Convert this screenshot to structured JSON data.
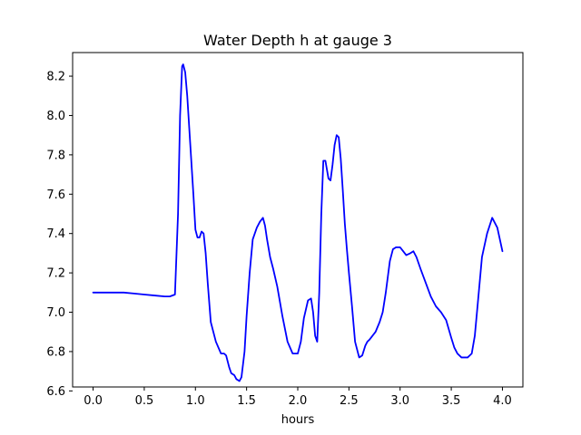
{
  "chart_data": {
    "type": "line",
    "title": "Water Depth h at gauge 3",
    "xlabel": "hours",
    "ylabel": "",
    "xlim": [
      -0.2,
      4.2
    ],
    "ylim": [
      6.62,
      8.32
    ],
    "xticks": [
      0.0,
      0.5,
      1.0,
      1.5,
      2.0,
      2.5,
      3.0,
      3.5,
      4.0
    ],
    "xtick_labels": [
      "0.0",
      "0.5",
      "1.0",
      "1.5",
      "2.0",
      "2.5",
      "3.0",
      "3.5",
      "4.0"
    ],
    "yticks": [
      6.6,
      6.8,
      7.0,
      7.2,
      7.4,
      7.6,
      7.8,
      8.0,
      8.2
    ],
    "ytick_labels": [
      "6.6",
      "6.8",
      "7.0",
      "7.2",
      "7.4",
      "7.6",
      "7.8",
      "8.0",
      "8.2"
    ],
    "grid": false,
    "legend": "none",
    "series": [
      {
        "color": "#0000ff",
        "x": [
          0.0,
          0.1,
          0.2,
          0.3,
          0.4,
          0.5,
          0.6,
          0.7,
          0.75,
          0.8,
          0.83,
          0.85,
          0.87,
          0.88,
          0.9,
          0.92,
          0.95,
          0.98,
          1.0,
          1.02,
          1.04,
          1.06,
          1.08,
          1.1,
          1.12,
          1.15,
          1.2,
          1.25,
          1.28,
          1.3,
          1.33,
          1.35,
          1.38,
          1.4,
          1.43,
          1.45,
          1.48,
          1.5,
          1.53,
          1.56,
          1.6,
          1.63,
          1.66,
          1.68,
          1.7,
          1.73,
          1.76,
          1.8,
          1.85,
          1.9,
          1.95,
          2.0,
          2.03,
          2.06,
          2.1,
          2.13,
          2.15,
          2.17,
          2.19,
          2.21,
          2.23,
          2.25,
          2.27,
          2.3,
          2.32,
          2.34,
          2.36,
          2.38,
          2.4,
          2.42,
          2.44,
          2.46,
          2.48,
          2.5,
          2.53,
          2.56,
          2.6,
          2.63,
          2.66,
          2.68,
          2.7,
          2.73,
          2.76,
          2.8,
          2.83,
          2.86,
          2.9,
          2.93,
          2.96,
          3.0,
          3.03,
          3.06,
          3.1,
          3.13,
          3.16,
          3.2,
          3.25,
          3.3,
          3.35,
          3.4,
          3.45,
          3.5,
          3.53,
          3.56,
          3.6,
          3.63,
          3.66,
          3.7,
          3.73,
          3.76,
          3.8,
          3.85,
          3.9,
          3.95,
          4.0
        ],
        "y": [
          7.1,
          7.1,
          7.1,
          7.1,
          7.095,
          7.09,
          7.085,
          7.08,
          7.08,
          7.09,
          7.5,
          8.0,
          8.25,
          8.26,
          8.22,
          8.1,
          7.85,
          7.6,
          7.42,
          7.38,
          7.38,
          7.41,
          7.4,
          7.3,
          7.15,
          6.95,
          6.85,
          6.79,
          6.79,
          6.78,
          6.72,
          6.69,
          6.68,
          6.66,
          6.65,
          6.67,
          6.8,
          6.98,
          7.2,
          7.37,
          7.43,
          7.46,
          7.48,
          7.44,
          7.37,
          7.28,
          7.22,
          7.13,
          6.98,
          6.85,
          6.79,
          6.79,
          6.85,
          6.97,
          7.06,
          7.07,
          7.0,
          6.88,
          6.85,
          7.1,
          7.5,
          7.77,
          7.77,
          7.68,
          7.67,
          7.75,
          7.85,
          7.9,
          7.89,
          7.78,
          7.62,
          7.45,
          7.32,
          7.2,
          7.03,
          6.85,
          6.77,
          6.78,
          6.83,
          6.85,
          6.86,
          6.88,
          6.9,
          6.95,
          7.0,
          7.1,
          7.26,
          7.32,
          7.33,
          7.33,
          7.31,
          7.29,
          7.3,
          7.31,
          7.28,
          7.22,
          7.15,
          7.08,
          7.03,
          7.0,
          6.96,
          6.87,
          6.82,
          6.79,
          6.77,
          6.77,
          6.77,
          6.79,
          6.88,
          7.05,
          7.28,
          7.4,
          7.48,
          7.43,
          7.31
        ]
      }
    ]
  }
}
